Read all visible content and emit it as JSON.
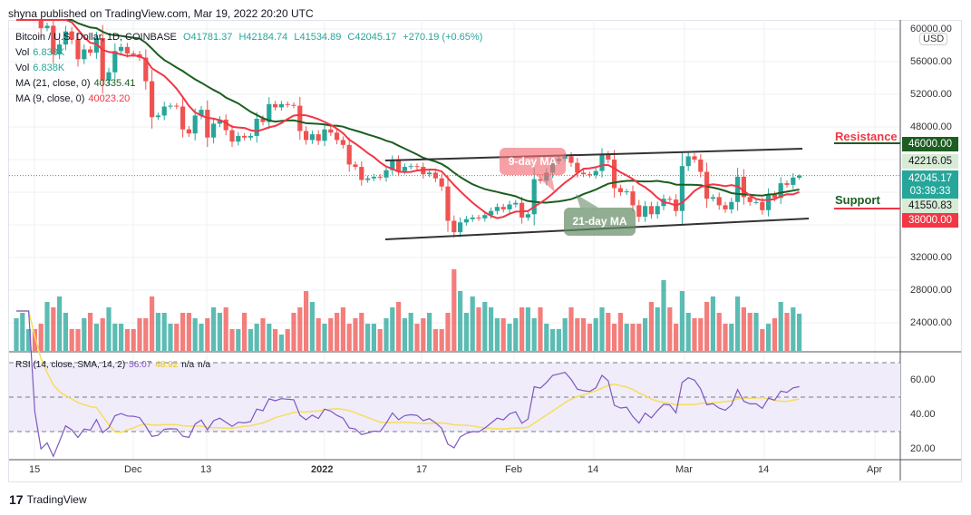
{
  "header": {
    "published": "shyna published on TradingView.com, Mar 19, 2022 20:20 UTC"
  },
  "legend": {
    "symbol": "Bitcoin / U.S. Dollar, 1D, COINBASE",
    "open": "O41781.37",
    "high": "H42184.74",
    "low": "L41534.89",
    "close": "C42045.17",
    "change": "+270.19 (+0.65%)",
    "vol1_label": "Vol",
    "vol1_value": "6.838K",
    "vol2_label": "Vol",
    "vol2_value": "6.838K",
    "ma21_label": "MA (21, close, 0)",
    "ma21_value": "40335.41",
    "ma9_label": "MA (9, close, 0)",
    "ma9_value": "40023.20",
    "rsi_label": "RSI (14, close, SMA, 14, 2)",
    "rsi_value": "56.07",
    "rsi_sma_value": "48.92",
    "rsi_na1": "n/a",
    "rsi_na2": "n/a"
  },
  "annotations": {
    "ma9": "9-day MA",
    "ma21": "21-day MA",
    "resistance": "Resistance",
    "support": "Support"
  },
  "price_axis": {
    "currency": "USD",
    "ticks": [
      "60000.00",
      "56000.00",
      "52000.00",
      "48000.00",
      "32000.00",
      "28000.00",
      "24000.00"
    ],
    "tags": {
      "resistance": "46000.00",
      "high": "42216.05",
      "last": "42045.17",
      "countdown": "03:39:33",
      "low": "41550.83",
      "support": "38000.00"
    }
  },
  "rsi_axis": {
    "ticks": [
      "60.00",
      "40.00",
      "20.00"
    ]
  },
  "time_axis": {
    "ticks": [
      "15",
      "Dec",
      "13",
      "2022",
      "17",
      "Feb",
      "14",
      "Mar",
      "14",
      "Apr"
    ]
  },
  "footer": {
    "brand": "TradingView"
  },
  "colors": {
    "up": "#26a69a",
    "down": "#ef5350",
    "ma9": "#f23645",
    "ma21": "#1b5e20",
    "rsi": "#7e57c2",
    "rsi_sma": "#f5de5b",
    "resistance": "#1b5e20",
    "support": "#f23645"
  },
  "chart_data": {
    "type": "candlestick",
    "title": "Bitcoin / U.S. Dollar, 1D, COINBASE",
    "start_date": "2021-11-12",
    "end_date": "2022-03-19",
    "ylim": [
      30000,
      62000
    ],
    "closes": [
      64150,
      64400,
      65500,
      63600,
      60100,
      60400,
      56900,
      58100,
      59700,
      58700,
      56300,
      57500,
      57100,
      58900,
      53700,
      54700,
      57300,
      57800,
      57000,
      56900,
      56500,
      53600,
      49200,
      49400,
      50500,
      50600,
      50500,
      47700,
      47200,
      49400,
      50100,
      46700,
      48400,
      48900,
      47600,
      46200,
      46900,
      46700,
      46900,
      49000,
      48600,
      50800,
      50400,
      50800,
      50700,
      50600,
      47500,
      46400,
      47100,
      46300,
      47700,
      47300,
      46400,
      45800,
      43400,
      43100,
      41500,
      41700,
      41900,
      41800,
      42700,
      43900,
      42600,
      43100,
      43200,
      43100,
      42200,
      42400,
      41700,
      40700,
      36500,
      35100,
      36300,
      36700,
      36900,
      36800,
      37200,
      37700,
      38200,
      37900,
      38500,
      38700,
      36900,
      37300,
      41600,
      41400,
      42400,
      43800,
      44100,
      44400,
      43600,
      42400,
      42200,
      42100,
      42600,
      44600,
      44000,
      40500,
      40000,
      40100,
      38400,
      37000,
      38300,
      37300,
      38300,
      39200,
      39100,
      37700,
      43200,
      44400,
      44000,
      42500,
      39200,
      39400,
      38400,
      37900,
      38800,
      41900,
      39400,
      38800,
      38800,
      37800,
      39700,
      39300,
      41100,
      40900,
      41800,
      42045.17
    ],
    "volume_k": [
      6,
      7,
      4,
      4,
      5,
      9,
      8,
      10,
      7,
      4,
      4,
      6,
      7,
      5,
      6,
      8,
      5,
      5,
      4,
      4,
      6,
      6,
      10,
      7,
      7,
      5,
      5,
      7,
      7,
      6,
      5,
      6,
      8,
      7,
      8,
      4,
      4,
      7,
      4,
      5,
      6,
      5,
      4,
      3,
      4,
      7,
      8,
      11,
      9,
      6,
      5,
      6,
      7,
      8,
      5,
      6,
      7,
      5,
      5,
      4,
      6,
      8,
      9,
      6,
      7,
      5,
      6,
      7,
      4,
      4,
      7,
      15,
      11,
      7,
      10,
      8,
      9,
      8,
      6,
      6,
      5,
      6,
      8,
      8,
      6,
      8,
      5,
      4,
      4,
      6,
      8,
      6,
      6,
      5,
      6,
      8,
      7,
      5,
      7,
      5,
      5,
      5,
      6,
      9,
      8,
      13,
      8,
      5,
      11,
      7,
      6,
      6,
      9,
      10,
      7,
      5,
      5,
      10,
      8,
      7,
      7,
      4,
      5,
      6,
      9,
      7,
      8,
      6.838
    ],
    "ohlc_last": {
      "open": 41781.37,
      "high": 42184.74,
      "low": 41534.89,
      "close": 42045.17
    },
    "indicators": [
      "MA 21",
      "MA 9",
      "RSI 14",
      "RSI SMA 14"
    ],
    "rsi_bands": [
      70,
      50,
      30
    ],
    "rsi_ylim": [
      15,
      75
    ]
  }
}
